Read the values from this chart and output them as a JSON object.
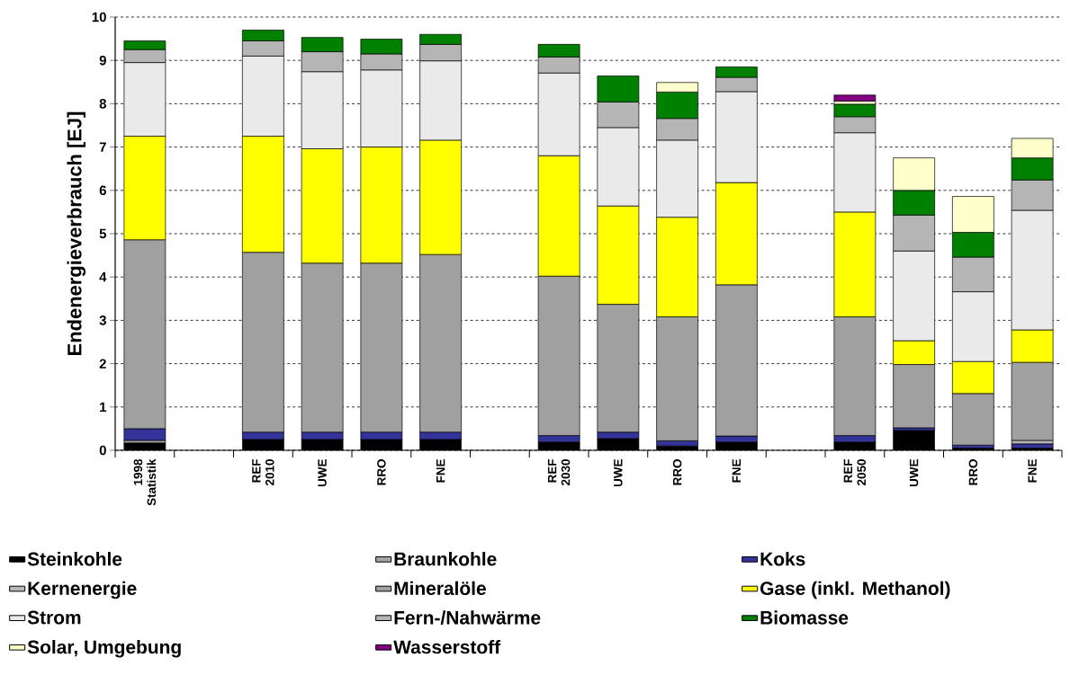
{
  "chart_data": {
    "type": "bar",
    "stacked": true,
    "ylabel": "Endenergieverbrauch [EJ]",
    "categories": [
      "1998 Statistik",
      null,
      "REF 2010",
      "UWE",
      "RRO",
      "FNE",
      null,
      "REF 2030",
      "UWE",
      "RRO",
      "FNE",
      null,
      "REF 2050",
      "UWE",
      "RRO",
      "FNE"
    ],
    "series": [
      {
        "name": "Steinkohle",
        "color": "#000000",
        "values": [
          0.17,
          null,
          0.25,
          0.25,
          0.25,
          0.25,
          null,
          0.19,
          0.27,
          0.1,
          0.19,
          null,
          0.19,
          0.46,
          0.05,
          0.05
        ]
      },
      {
        "name": "Braunkohle",
        "color": "#a6a6a6",
        "values": [
          0.06,
          null,
          null,
          null,
          null,
          null,
          null,
          null,
          null,
          null,
          null,
          null,
          null,
          null,
          null,
          null
        ]
      },
      {
        "name": "Koks",
        "color": "#333399",
        "values": [
          0.27,
          null,
          0.17,
          0.17,
          0.17,
          0.17,
          null,
          0.15,
          0.15,
          0.12,
          0.14,
          null,
          0.15,
          0.06,
          0.07,
          0.1
        ]
      },
      {
        "name": "Kernenergie",
        "color": "#b8b8b8",
        "values": [
          null,
          null,
          null,
          null,
          null,
          null,
          null,
          null,
          null,
          null,
          null,
          null,
          null,
          null,
          null,
          0.08
        ]
      },
      {
        "name": "Mineralöle",
        "color": "#a0a0a0",
        "values": [
          4.36,
          null,
          4.15,
          3.9,
          3.9,
          4.1,
          null,
          3.68,
          2.95,
          2.86,
          3.49,
          null,
          2.74,
          1.46,
          1.19,
          1.8
        ]
      },
      {
        "name": "Gase (inkl. Methanol)",
        "color": "#ffff00",
        "values": [
          2.39,
          null,
          2.68,
          2.64,
          2.68,
          2.64,
          null,
          2.78,
          2.27,
          2.3,
          2.36,
          null,
          2.42,
          0.55,
          0.74,
          0.75
        ]
      },
      {
        "name": "Strom",
        "color": "#eaeaea",
        "values": [
          1.7,
          null,
          1.85,
          1.78,
          1.78,
          1.83,
          null,
          1.91,
          1.81,
          1.78,
          2.1,
          null,
          1.83,
          2.07,
          1.61,
          2.76
        ]
      },
      {
        "name": "Fern-/Nahwärme",
        "color": "#b5b5b5",
        "values": [
          0.3,
          null,
          0.35,
          0.46,
          0.37,
          0.38,
          null,
          0.37,
          0.59,
          0.5,
          0.33,
          null,
          0.37,
          0.83,
          0.8,
          0.7
        ]
      },
      {
        "name": "Biomasse",
        "color": "#008000",
        "values": [
          0.2,
          null,
          0.25,
          0.33,
          0.34,
          0.23,
          null,
          0.29,
          0.6,
          0.61,
          0.24,
          null,
          0.29,
          0.57,
          0.57,
          0.51
        ]
      },
      {
        "name": "Solar, Umgebung",
        "color": "#ffffcc",
        "values": [
          null,
          null,
          null,
          null,
          null,
          null,
          null,
          null,
          null,
          0.22,
          null,
          null,
          0.07,
          0.75,
          0.83,
          0.45
        ]
      },
      {
        "name": "Wasserstoff",
        "color": "#800080",
        "values": [
          null,
          null,
          null,
          null,
          null,
          null,
          null,
          null,
          null,
          null,
          null,
          null,
          0.14,
          null,
          null,
          null
        ]
      }
    ],
    "ylim": [
      0,
      10
    ],
    "yticks": [
      0,
      1,
      2,
      3,
      4,
      5,
      6,
      7,
      8,
      9,
      10
    ],
    "grid": "y",
    "legend": "bottom"
  }
}
